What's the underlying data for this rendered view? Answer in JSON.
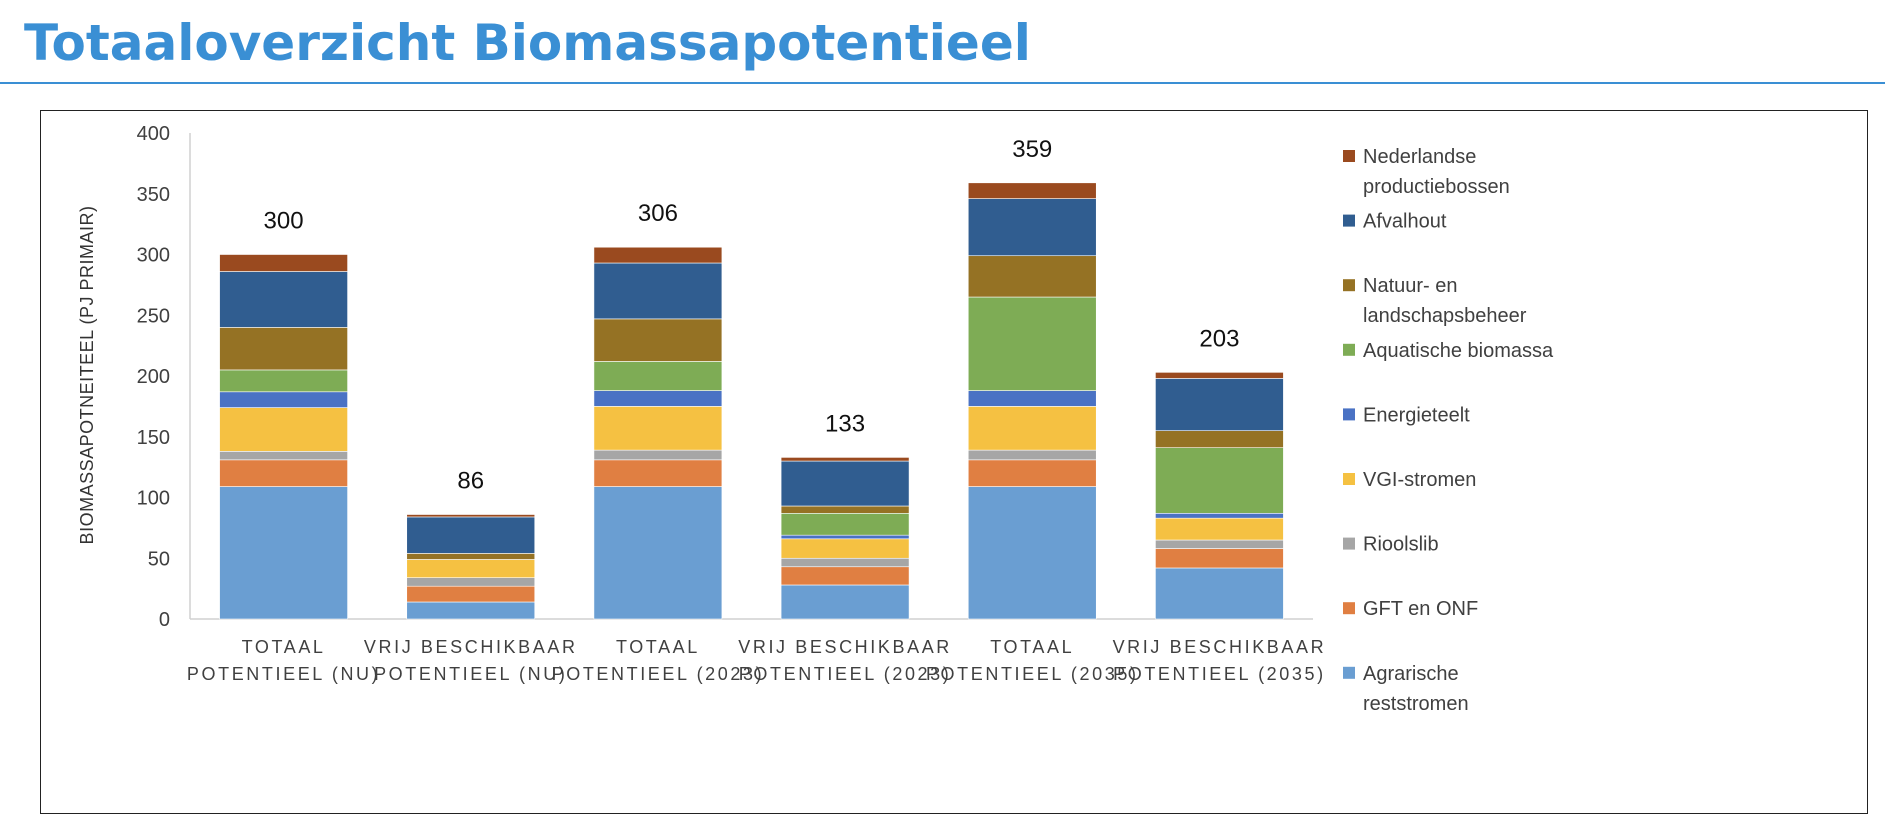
{
  "page": {
    "title": "Totaaloverzicht Biomassapotentieel"
  },
  "chart_data": {
    "type": "bar",
    "stacked": true,
    "title": "",
    "xlabel": "",
    "ylabel": "BIOMASSAPOTNEITEEL (PJ PRIMAIR)",
    "ylim": [
      0,
      400
    ],
    "yticks": [
      0,
      50,
      100,
      150,
      200,
      250,
      300,
      350,
      400
    ],
    "grid": false,
    "legend_position": "right",
    "categories": [
      [
        "TOTAAL",
        "POTENTIEEL (NU)"
      ],
      [
        "VRIJ BESCHIKBAAR",
        "POTENTIEEL (NU)"
      ],
      [
        "TOTAAL",
        "POTENTIEEL (2023)"
      ],
      [
        "VRIJ BESCHIKBAAR",
        "POTENTIEEL (2023)"
      ],
      [
        "TOTAAL",
        "POTENTIEEL (2035)"
      ],
      [
        "VRIJ BESCHIKBAAR",
        "POTENTIEEL (2035)"
      ]
    ],
    "totals": [
      300,
      86,
      306,
      133,
      359,
      203
    ],
    "series": [
      {
        "name": [
          "Agrarische",
          "reststromen"
        ],
        "color": "#6a9ed2",
        "values": [
          109,
          14,
          109,
          28,
          109,
          42
        ]
      },
      {
        "name": [
          "GFT en ONF"
        ],
        "color": "#e07f42",
        "values": [
          22,
          13,
          22,
          15,
          22,
          16
        ]
      },
      {
        "name": [
          "Rioolslib"
        ],
        "color": "#a6a6a6",
        "values": [
          7,
          7,
          8,
          7,
          8,
          7
        ]
      },
      {
        "name": [
          "VGI-stromen"
        ],
        "color": "#f5c142",
        "values": [
          36,
          15,
          36,
          16,
          36,
          18
        ]
      },
      {
        "name": [
          "Energieteelt"
        ],
        "color": "#4a72c4",
        "values": [
          13,
          0,
          13,
          3,
          13,
          4
        ]
      },
      {
        "name": [
          "Aquatische biomassa"
        ],
        "color": "#7eac55",
        "values": [
          18,
          0,
          24,
          18,
          77,
          54
        ]
      },
      {
        "name": [
          "Natuur- en",
          "landschapsbeheer"
        ],
        "color": "#957224",
        "values": [
          35,
          5,
          35,
          6,
          34,
          14
        ]
      },
      {
        "name": [
          "Afvalhout"
        ],
        "color": "#305d90",
        "values": [
          46,
          30,
          46,
          37,
          47,
          43
        ]
      },
      {
        "name": [
          "Nederlandse",
          "productiebossen"
        ],
        "color": "#9a4a1f",
        "values": [
          14,
          2,
          13,
          3,
          13,
          5
        ]
      }
    ]
  }
}
